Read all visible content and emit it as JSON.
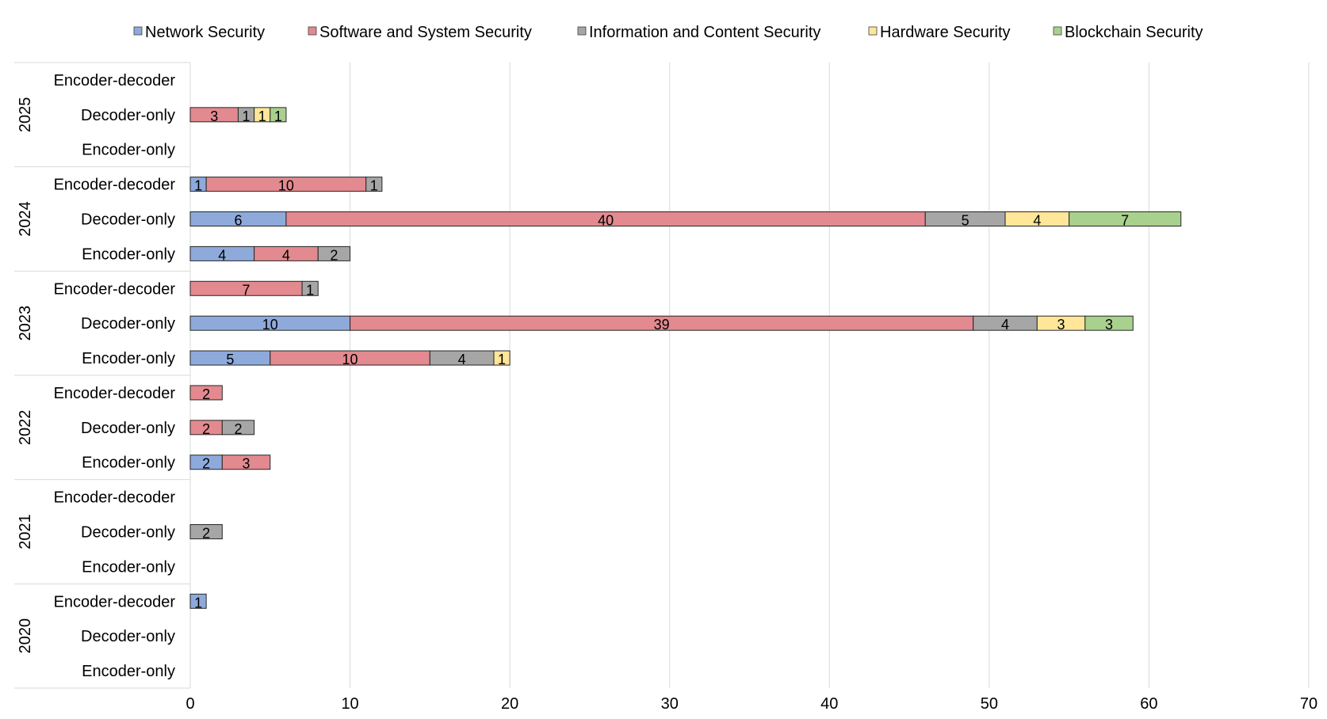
{
  "chart_data": {
    "type": "bar",
    "orientation": "horizontal",
    "stacked": true,
    "title": "",
    "xlabel": "",
    "ylabel": "",
    "xlim": [
      0,
      70
    ],
    "x_ticks": [
      "0",
      "10",
      "20",
      "30",
      "40",
      "50",
      "60",
      "70"
    ],
    "grid": "vertical",
    "legend_position": "top",
    "groups": [
      "2025",
      "2024",
      "2023",
      "2022",
      "2021",
      "2020"
    ],
    "subcategories": [
      "Encoder-decoder",
      "Decoder-only",
      "Encoder-only"
    ],
    "series": [
      {
        "name": "Network Security",
        "color": "#8eaadb",
        "values": [
          [
            0,
            0,
            0
          ],
          [
            1,
            6,
            4
          ],
          [
            0,
            10,
            5
          ],
          [
            0,
            0,
            2
          ],
          [
            0,
            0,
            0
          ],
          [
            1,
            0,
            0
          ]
        ]
      },
      {
        "name": "Software and System Security",
        "color": "#e28a8f",
        "values": [
          [
            0,
            3,
            0
          ],
          [
            10,
            40,
            4
          ],
          [
            7,
            39,
            10
          ],
          [
            2,
            2,
            3
          ],
          [
            0,
            0,
            0
          ],
          [
            0,
            0,
            0
          ]
        ]
      },
      {
        "name": "Information and Content Security",
        "color": "#a6a6a6",
        "values": [
          [
            0,
            1,
            0
          ],
          [
            1,
            5,
            2
          ],
          [
            1,
            4,
            4
          ],
          [
            0,
            2,
            0
          ],
          [
            0,
            2,
            0
          ],
          [
            0,
            0,
            0
          ]
        ]
      },
      {
        "name": "Hardware Security",
        "color": "#ffe699",
        "values": [
          [
            0,
            1,
            0
          ],
          [
            0,
            4,
            0
          ],
          [
            0,
            3,
            1
          ],
          [
            0,
            0,
            0
          ],
          [
            0,
            0,
            0
          ],
          [
            0,
            0,
            0
          ]
        ]
      },
      {
        "name": "Blockchain Security",
        "color": "#a9d18e",
        "values": [
          [
            0,
            1,
            0
          ],
          [
            0,
            7,
            0
          ],
          [
            0,
            3,
            0
          ],
          [
            0,
            0,
            0
          ],
          [
            0,
            0,
            0
          ],
          [
            0,
            0,
            0
          ]
        ]
      }
    ]
  }
}
